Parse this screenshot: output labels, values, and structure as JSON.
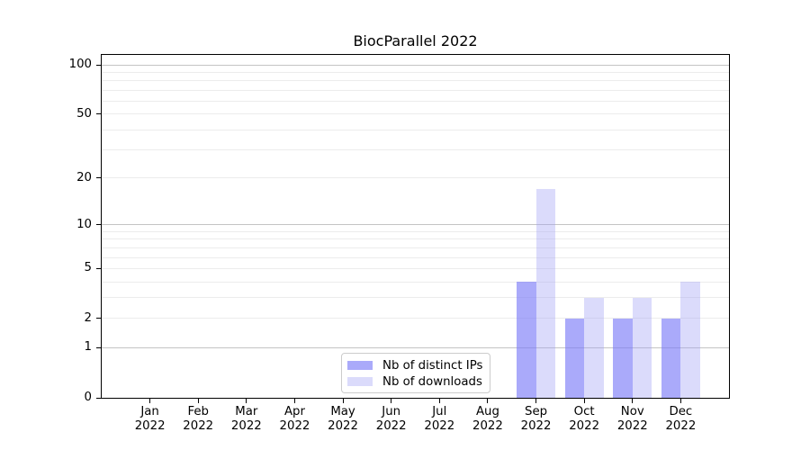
{
  "chart_data": {
    "type": "bar",
    "title": "BiocParallel 2022",
    "categories": [
      "Jan",
      "Feb",
      "Mar",
      "Apr",
      "May",
      "Jun",
      "Jul",
      "Aug",
      "Sep",
      "Oct",
      "Nov",
      "Dec"
    ],
    "category_year": "2022",
    "series": [
      {
        "name": "Nb of distinct IPs",
        "values": [
          0,
          0,
          0,
          0,
          0,
          0,
          0,
          0,
          4,
          2,
          2,
          2
        ],
        "color": "rgba(124,124,247,0.65)"
      },
      {
        "name": "Nb of downloads",
        "values": [
          0,
          0,
          0,
          0,
          0,
          0,
          0,
          0,
          17,
          3,
          3,
          4
        ],
        "color": "rgba(160,160,245,0.38)"
      }
    ],
    "yscale": "log1p",
    "ylim": [
      0,
      115
    ],
    "yticks": [
      0,
      1,
      2,
      5,
      10,
      20,
      50,
      100
    ],
    "grid": {
      "major_values": [
        1,
        10,
        100
      ],
      "minor_values": [
        2,
        3,
        4,
        5,
        6,
        7,
        8,
        9,
        20,
        30,
        40,
        50,
        60,
        70,
        80,
        90
      ],
      "major_color": "#c4c4c4",
      "minor_color": "#ececec"
    },
    "legend": {
      "position": "lower center"
    }
  }
}
